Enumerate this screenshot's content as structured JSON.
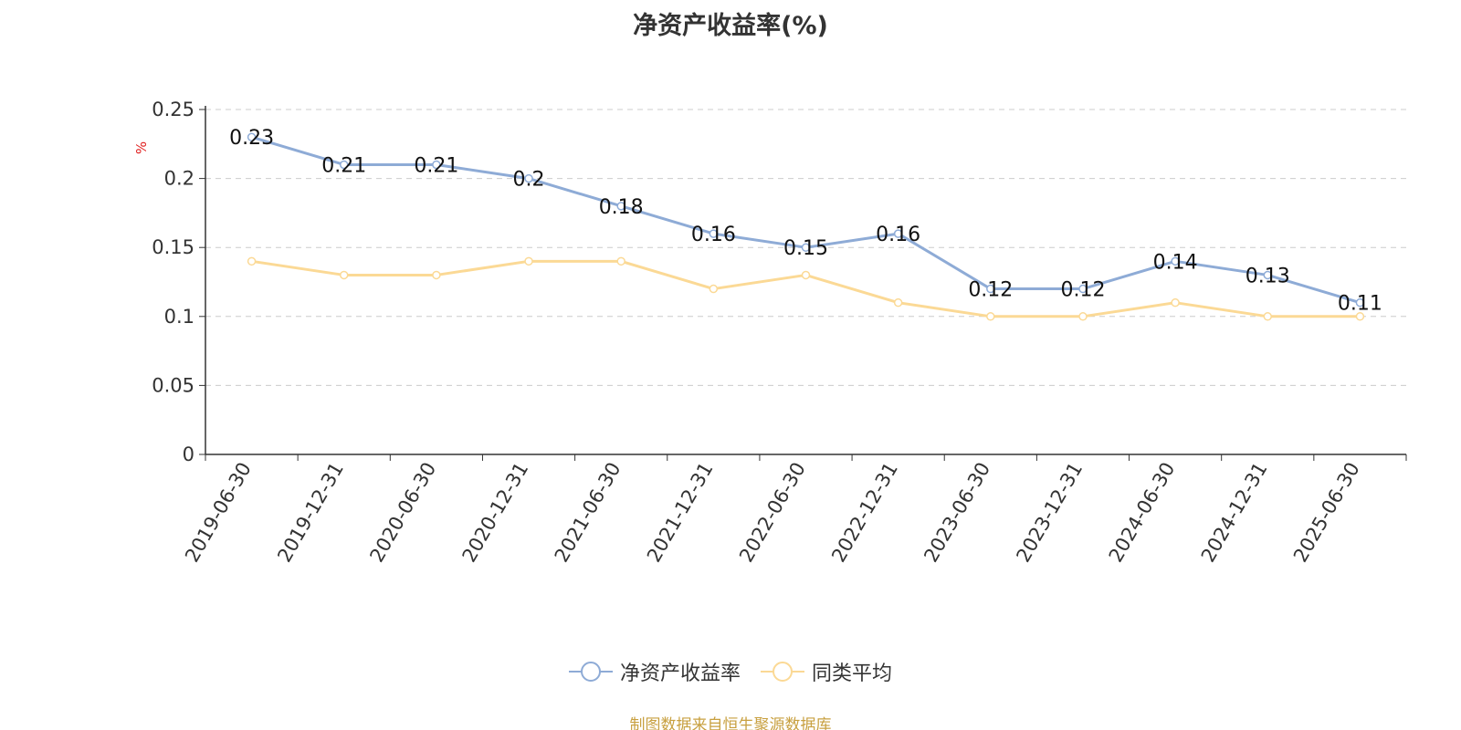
{
  "chart_data": {
    "type": "line",
    "title": "净资产收益率(%)",
    "ylabel": "%",
    "ylim": [
      0,
      0.25
    ],
    "yticks": [
      "0",
      "0.05",
      "0.1",
      "0.15",
      "0.2",
      "0.25"
    ],
    "ytick_values": [
      0,
      0.05,
      0.1,
      0.15,
      0.2,
      0.25
    ],
    "grid": true,
    "legend_position": "bottom",
    "categories": [
      "2019-06-30",
      "2019-12-31",
      "2020-06-30",
      "2020-12-31",
      "2021-06-30",
      "2021-12-31",
      "2022-06-30",
      "2022-12-31",
      "2023-06-30",
      "2023-12-31",
      "2024-06-30",
      "2024-12-31",
      "2025-06-30"
    ],
    "series": [
      {
        "name": "净资产收益率",
        "color": "#8eabd6",
        "values": [
          0.23,
          0.21,
          0.21,
          0.2,
          0.18,
          0.16,
          0.15,
          0.16,
          0.12,
          0.12,
          0.14,
          0.13,
          0.11
        ],
        "labels": [
          "0.23",
          "0.21",
          "0.21",
          "0.2",
          "0.18",
          "0.16",
          "0.15",
          "0.16",
          "0.12",
          "0.12",
          "0.14",
          "0.13",
          "0.11"
        ]
      },
      {
        "name": "同类平均",
        "color": "#fbd995",
        "values": [
          0.14,
          0.13,
          0.13,
          0.14,
          0.14,
          0.12,
          0.13,
          0.11,
          0.1,
          0.1,
          0.11,
          0.1,
          0.1
        ]
      }
    ]
  },
  "source": "制图数据来自恒生聚源数据库"
}
